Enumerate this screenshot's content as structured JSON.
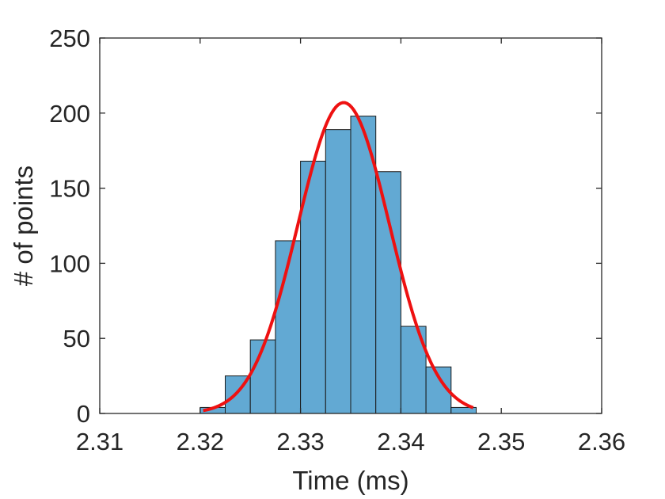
{
  "chart_data": {
    "type": "bar",
    "xlabel": "Time (ms)",
    "ylabel": "# of points",
    "xlim": [
      2.31,
      2.36
    ],
    "ylim": [
      0,
      250
    ],
    "xticks": [
      "2.31",
      "2.32",
      "2.33",
      "2.34",
      "2.35",
      "2.36"
    ],
    "yticks": [
      "0",
      "50",
      "100",
      "150",
      "200",
      "250"
    ],
    "box": true,
    "grid": false,
    "bin_edges": [
      2.32,
      2.3225,
      2.325,
      2.3275,
      2.33,
      2.3325,
      2.335,
      2.3375,
      2.34,
      2.3425,
      2.345,
      2.3475
    ],
    "counts": [
      4,
      25,
      49,
      115,
      168,
      189,
      198,
      161,
      58,
      31,
      4
    ],
    "fit_curve": {
      "type": "gaussian",
      "peak": 207,
      "mean": 2.3343,
      "sigma": 0.00457,
      "x_range": [
        2.3203,
        2.3472
      ]
    },
    "colors": {
      "bars": "#62A9D3",
      "bar_edge": "#1A1A1A",
      "fit_line": "#EE1111",
      "axis": "#262626"
    }
  }
}
